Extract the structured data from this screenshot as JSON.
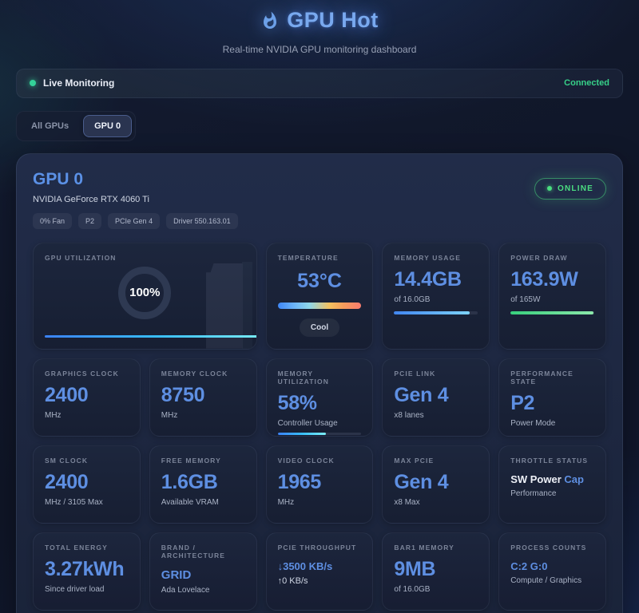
{
  "header": {
    "title": "GPU Hot",
    "subtitle": "Real-time NVIDIA GPU monitoring dashboard"
  },
  "status_bar": {
    "live_label": "Live Monitoring",
    "connection": "Connected"
  },
  "tabs": {
    "all_gpus": "All GPUs",
    "gpu0": "GPU 0"
  },
  "gpu_header": {
    "title": "GPU 0",
    "name": "NVIDIA GeForce RTX 4060 Ti",
    "online": "ONLINE",
    "badges": [
      "0% Fan",
      "P2",
      "PCIe Gen 4",
      "Driver 550.163.01"
    ]
  },
  "metrics": {
    "gpu_utilization": {
      "label": "GPU UTILIZATION",
      "value": "100%",
      "percent": 100
    },
    "temperature": {
      "label": "TEMPERATURE",
      "value": "53°C",
      "status_chip": "Cool"
    },
    "memory_usage": {
      "label": "MEMORY USAGE",
      "value": "14.4GB",
      "sub": "of 16.0GB",
      "percent": 90
    },
    "power_draw": {
      "label": "POWER DRAW",
      "value": "163.9W",
      "sub": "of 165W",
      "percent": 99
    },
    "graphics_clock": {
      "label": "GRAPHICS CLOCK",
      "value": "2400",
      "sub": "MHz"
    },
    "memory_clock": {
      "label": "MEMORY CLOCK",
      "value": "8750",
      "sub": "MHz"
    },
    "memory_utilization": {
      "label": "MEMORY UTILIZATION",
      "value": "58%",
      "sub": "Controller Usage",
      "percent": 58
    },
    "pcie_link": {
      "label": "PCIE LINK",
      "value": "Gen 4",
      "sub": "x8 lanes"
    },
    "performance_state": {
      "label": "PERFORMANCE STATE",
      "value": "P2",
      "sub": "Power Mode"
    },
    "sm_clock": {
      "label": "SM CLOCK",
      "value": "2400",
      "sub": "MHz / 3105 Max"
    },
    "free_memory": {
      "label": "FREE MEMORY",
      "value": "1.6GB",
      "sub": "Available VRAM"
    },
    "video_clock": {
      "label": "VIDEO CLOCK",
      "value": "1965",
      "sub": "MHz"
    },
    "max_pcie": {
      "label": "MAX PCIE",
      "value": "Gen 4",
      "sub": "x8 Max"
    },
    "throttle_status": {
      "label": "THROTTLE STATUS",
      "value_main": "SW Power",
      "value_accent": " Cap",
      "sub": "Performance"
    },
    "total_energy": {
      "label": "TOTAL ENERGY",
      "value": "3.27kWh",
      "sub": "Since driver load"
    },
    "brand_architecture": {
      "label": "BRAND / ARCHITECTURE",
      "value": "GRID",
      "sub": "Ada Lovelace"
    },
    "pcie_throughput": {
      "label": "PCIE THROUGHPUT",
      "rx": "↓3500 KB/s",
      "tx": "↑0 KB/s"
    },
    "bar1_memory": {
      "label": "BAR1 MEMORY",
      "value": "9MB",
      "sub": "of 16.0GB"
    },
    "process_counts": {
      "label": "PROCESS COUNTS",
      "value": "C:2 G:0",
      "sub": "Compute / Graphics"
    }
  },
  "colors": {
    "accent_blue": "#5e8fe2",
    "accent_green": "#4ade80"
  }
}
